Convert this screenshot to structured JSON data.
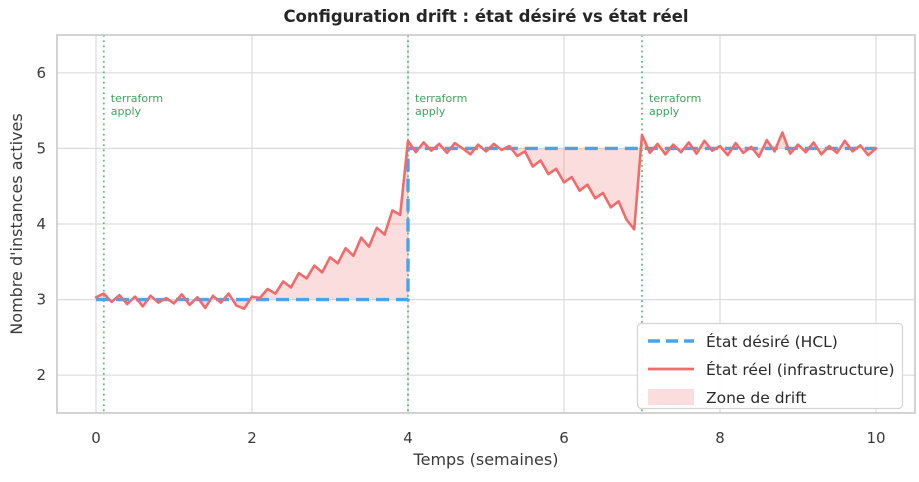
{
  "chart_data": {
    "type": "line",
    "title": "Configuration drift : état désiré vs état réel",
    "xlabel": "Temps (semaines)",
    "ylabel": "Nombre d'instances actives",
    "xlim": [
      -0.5,
      10.5
    ],
    "ylim": [
      1.5,
      6.5
    ],
    "xticks": [
      0,
      2,
      4,
      6,
      8,
      10
    ],
    "yticks": [
      2,
      3,
      4,
      5,
      6
    ],
    "grid": true,
    "grid_color": "#dcdcdc",
    "frame_color": "#c8c8c8",
    "legend_position": "lower right",
    "apply_line_color": "#4cb870",
    "apply_text_color": "#3fa35c",
    "annotations": [
      {
        "x": 0.1,
        "lines": [
          "terraform",
          "apply"
        ]
      },
      {
        "x": 4.0,
        "lines": [
          "terraform",
          "apply"
        ]
      },
      {
        "x": 7.0,
        "lines": [
          "terraform",
          "apply"
        ]
      }
    ],
    "series": [
      {
        "name": "État désiré (HCL)",
        "kind": "step",
        "color": "#4da3e8",
        "line_style": "dashed",
        "points": [
          [
            0,
            3
          ],
          [
            4,
            3
          ],
          [
            4,
            5
          ],
          [
            10,
            5
          ]
        ]
      },
      {
        "name": "État réel (infrastructure)",
        "kind": "noisy-line",
        "color": "#f26b6b",
        "line_style": "solid",
        "x_start": 0,
        "x_step": 0.1,
        "values": [
          3.03,
          3.08,
          2.97,
          3.06,
          2.94,
          3.04,
          2.91,
          3.05,
          2.96,
          3.02,
          2.95,
          3.07,
          2.93,
          3.03,
          2.89,
          3.05,
          2.96,
          3.08,
          2.92,
          2.88,
          3.04,
          3.02,
          3.14,
          3.08,
          3.24,
          3.16,
          3.35,
          3.28,
          3.45,
          3.36,
          3.56,
          3.48,
          3.68,
          3.58,
          3.82,
          3.7,
          3.95,
          3.86,
          4.18,
          4.12,
          5.1,
          4.95,
          5.08,
          4.97,
          5.06,
          4.94,
          5.07,
          5.0,
          4.92,
          5.05,
          4.96,
          5.06,
          4.98,
          5.03,
          4.9,
          4.96,
          4.76,
          4.84,
          4.66,
          4.73,
          4.55,
          4.62,
          4.44,
          4.52,
          4.34,
          4.41,
          4.22,
          4.3,
          4.06,
          3.93,
          5.18,
          4.94,
          5.06,
          4.92,
          5.05,
          4.95,
          5.08,
          4.93,
          5.1,
          4.97,
          5.03,
          4.91,
          5.07,
          4.94,
          5.02,
          4.89,
          5.11,
          4.96,
          5.21,
          4.93,
          5.05,
          4.95,
          5.08,
          4.92,
          5.03,
          4.94,
          5.1,
          4.96,
          5.04,
          4.91,
          5.0
        ]
      },
      {
        "name": "Zone de drift",
        "kind": "fill-between",
        "between": [
          0,
          1
        ],
        "color": "#f28585",
        "fill_opacity": 0.28
      }
    ]
  }
}
